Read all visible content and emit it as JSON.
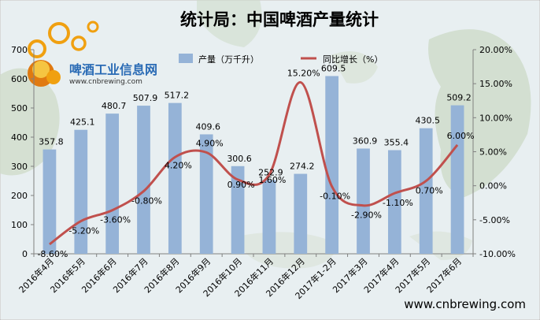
{
  "chart_data": {
    "type": "bar",
    "title": "统计局：中国啤酒产量统计",
    "categories": [
      "2016年4月",
      "2016年5月",
      "2016年6月",
      "2016年7月",
      "2016年8月",
      "2016年9月",
      "2016年10月",
      "2016年11月",
      "2016年12月",
      "2017年1-2月",
      "2017年3月",
      "2017年4月",
      "2017年5月",
      "2017年6月"
    ],
    "series": [
      {
        "name": "产量（万千升）",
        "kind": "bar",
        "axis": "left",
        "values": [
          357.8,
          425.1,
          480.7,
          507.9,
          517.2,
          409.6,
          300.6,
          252.9,
          274.2,
          609.5,
          360.9,
          355.4,
          430.5,
          509.2
        ],
        "labels": [
          "357.8",
          "425.1",
          "480.7",
          "507.9",
          "517.2",
          "409.6",
          "300.6",
          "252.9",
          "274.2",
          "609.5",
          "360.9",
          "355.4",
          "430.5",
          "509.2"
        ],
        "color": "#95B3D7"
      },
      {
        "name": "同比增长（%）",
        "kind": "line",
        "axis": "right",
        "values": [
          -8.6,
          -5.2,
          -3.6,
          -0.8,
          4.2,
          4.9,
          0.9,
          1.6,
          15.2,
          -0.1,
          -2.9,
          -1.1,
          0.7,
          6.0
        ],
        "labels": [
          "-8.60%",
          "-5.20%",
          "-3.60%",
          "-0.80%",
          "4.20%",
          "4.90%",
          "0.90%",
          "1.60%",
          "15.20%",
          "-0.10%",
          "-2.90%",
          "-1.10%",
          "0.70%",
          "6.00%"
        ],
        "color": "#C0504D"
      }
    ],
    "left_axis": {
      "ylim": [
        0,
        700
      ],
      "ticks": [
        "0",
        "100",
        "200",
        "300",
        "400",
        "500",
        "600",
        "700"
      ]
    },
    "right_axis": {
      "ylim": [
        -10,
        20
      ],
      "ticks": [
        "-10.00%",
        "-5.00%",
        "0.00%",
        "5.00%",
        "10.00%",
        "15.00%",
        "20.00%"
      ]
    },
    "legend_position": "top",
    "grid": false
  },
  "logo": {
    "text": "啤酒工业信息网",
    "url": "www.cnbrewing.com"
  },
  "footer": {
    "url": "www.cnbrewing.com"
  },
  "colors": {
    "background": "#e6eef0",
    "map": "#c9d6c4",
    "title": "#000000",
    "axis": "#404040"
  }
}
